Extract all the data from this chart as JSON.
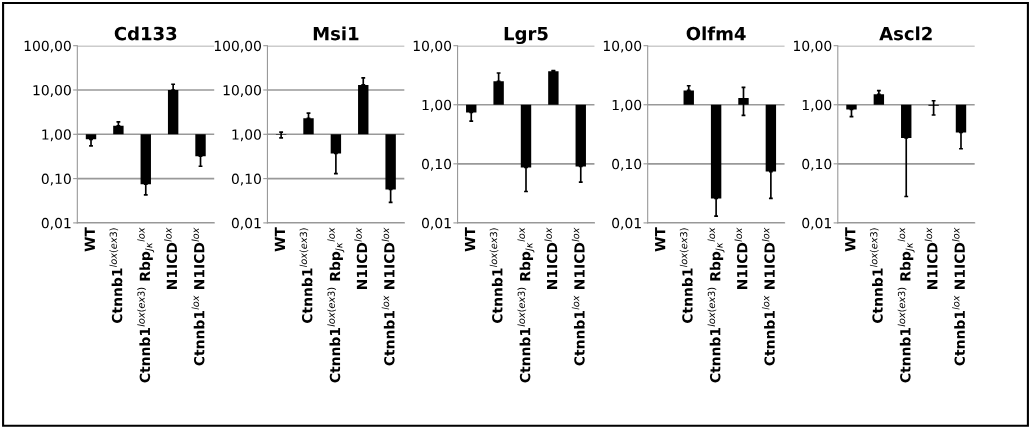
{
  "chart_data": [
    {
      "type": "bar",
      "title": "Cd133",
      "categories": [
        "WT",
        "Ctnnb1$^{lox(ex3)}$",
        "Ctnnb1$^{lox(ex3)}$ Rbp$_{Jκ}$$^{lox}$",
        "N1ICD$^{lox}$",
        "Ctnnb1$^{lox}$ N1ICD$^{lox}$"
      ],
      "base": [
        1,
        1,
        1,
        1,
        1
      ],
      "values": [
        -0.23,
        0.55,
        -0.925,
        9,
        -0.68
      ],
      "errors": [
        [
          0.55,
          0.77
        ],
        [
          1.55,
          1.9
        ],
        [
          0.043,
          0.075
        ],
        [
          10,
          13.5
        ],
        [
          0.19,
          0.32
        ]
      ],
      "colors": [
        "#000000",
        "#000000",
        "#000000",
        "#000000",
        "#000000"
      ],
      "log": "y",
      "ylim": [
        0.01,
        100
      ],
      "yticks": [
        {
          "value": 0.01,
          "label": "0,01"
        },
        {
          "value": 0.1,
          "label": "0,10"
        },
        {
          "value": 1,
          "label": "1,00"
        },
        {
          "value": 10,
          "label": "10,00"
        },
        {
          "value": 100,
          "label": "100,00"
        }
      ],
      "grid": "y"
    },
    {
      "type": "bar",
      "title": "Msi1",
      "categories": [
        "WT",
        "Ctnnb1$^{lox(ex3)}$",
        "Ctnnb1$^{lox(ex3)}$ Rbp$_{Jκ}$$^{lox}$",
        "N1ICD$^{lox}$",
        "Ctnnb1$^{lox}$ N1ICD$^{lox}$"
      ],
      "base": [
        1,
        1,
        1,
        1,
        1
      ],
      "values": [
        -0.02,
        1.3,
        -0.63,
        12,
        -0.943
      ],
      "errors": [
        [
          0.83,
          1.12
        ],
        [
          2.3,
          3.0
        ],
        [
          0.13,
          0.37
        ],
        [
          13,
          18.7
        ],
        [
          0.029,
          0.057
        ]
      ],
      "colors": [
        "#000000",
        "#000000",
        "#000000",
        "#000000",
        "#000000"
      ],
      "log": "y",
      "ylim": [
        0.01,
        100
      ],
      "yticks": [
        {
          "value": 0.01,
          "label": "0,01"
        },
        {
          "value": 0.1,
          "label": "0,10"
        },
        {
          "value": 1,
          "label": "1,00"
        },
        {
          "value": 10,
          "label": "10,00"
        },
        {
          "value": 100,
          "label": "100,00"
        }
      ],
      "grid": "y"
    },
    {
      "type": "bar",
      "title": "Lgr5",
      "categories": [
        "WT",
        "Ctnnb1$^{lox(ex3)}$",
        "Ctnnb1$^{lox(ex3)}$ Rbp$_{Jκ}$$^{lox}$",
        "N1ICD$^{lox}$",
        "Ctnnb1$^{lox}$ N1ICD$^{lox}$"
      ],
      "base": [
        1,
        1,
        1,
        1,
        1
      ],
      "values": [
        -0.26,
        1.5,
        -0.913,
        2.7,
        -0.91
      ],
      "errors": [
        [
          0.53,
          0.74
        ],
        [
          2.5,
          3.45
        ],
        [
          0.034,
          0.087
        ],
        [
          3.7,
          3.8
        ],
        [
          0.049,
          0.09
        ]
      ],
      "colors": [
        "#000000",
        "#000000",
        "#000000",
        "#000000",
        "#000000"
      ],
      "log": "y",
      "ylim": [
        0.01,
        10
      ],
      "yticks": [
        {
          "value": 0.01,
          "label": "0,01"
        },
        {
          "value": 0.1,
          "label": "0,10"
        },
        {
          "value": 1,
          "label": "1,00"
        },
        {
          "value": 10,
          "label": "10,00"
        }
      ],
      "grid": "y"
    },
    {
      "type": "bar",
      "title": "Olfm4",
      "categories": [
        "WT",
        "Ctnnb1$^{lox(ex3)}$",
        "Ctnnb1$^{lox(ex3)}$ Rbp$_{Jκ}$$^{lox}$",
        "N1ICD$^{lox}$",
        "Ctnnb1$^{lox}$ N1ICD$^{lox}$"
      ],
      "base": [
        null,
        1,
        1,
        1,
        1
      ],
      "values": [
        null,
        0.75,
        -0.974,
        0.3,
        -0.926
      ],
      "errors": [
        null,
        [
          1.75,
          2.1
        ],
        [
          0.013,
          0.026
        ],
        [
          0.66,
          1.97
        ],
        [
          0.026,
          0.074
        ]
      ],
      "colors": [
        "#000000",
        "#000000",
        "#000000",
        "#000000",
        "#000000"
      ],
      "log": "y",
      "ylim": [
        0.01,
        10
      ],
      "yticks": [
        {
          "value": 0.01,
          "label": "0,01"
        },
        {
          "value": 0.1,
          "label": "0,10"
        },
        {
          "value": 1,
          "label": "1,00"
        },
        {
          "value": 10,
          "label": "10,00"
        }
      ],
      "grid": "y"
    },
    {
      "type": "bar",
      "title": "Ascl2",
      "categories": [
        "WT",
        "Ctnnb1$^{lox(ex3)}$",
        "Ctnnb1$^{lox(ex3)}$ Rbp$_{Jκ}$$^{lox}$",
        "N1ICD$^{lox}$",
        "Ctnnb1$^{lox}$ N1ICD$^{lox}$"
      ],
      "base": [
        1,
        1,
        1,
        1,
        1
      ],
      "values": [
        -0.17,
        0.5,
        -0.725,
        -0.04,
        -0.66
      ],
      "errors": [
        [
          0.63,
          0.83
        ],
        [
          1.5,
          1.73
        ],
        [
          0.028,
          0.275
        ],
        [
          0.67,
          1.17
        ],
        [
          0.18,
          0.34
        ]
      ],
      "colors": [
        "#000000",
        "#000000",
        "#000000",
        "#000000",
        "#000000"
      ],
      "log": "y",
      "ylim": [
        0.01,
        10
      ],
      "yticks": [
        {
          "value": 0.01,
          "label": "0,01"
        },
        {
          "value": 0.1,
          "label": "0,10"
        },
        {
          "value": 1,
          "label": "1,00"
        },
        {
          "value": 10,
          "label": "10,00"
        }
      ],
      "grid": "y"
    }
  ]
}
